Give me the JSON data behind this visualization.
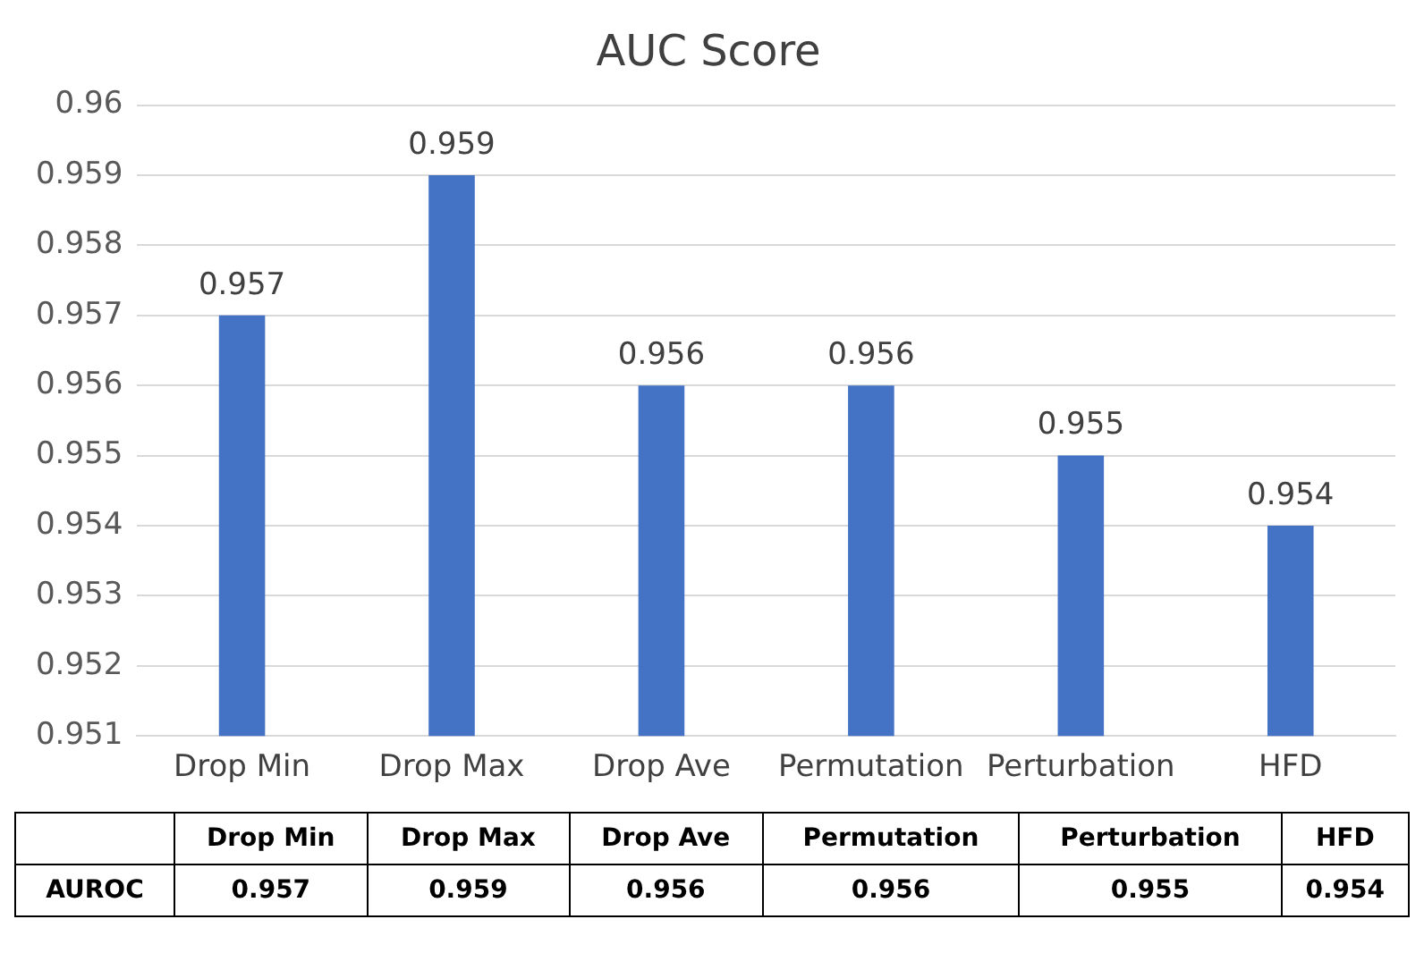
{
  "chart_data": {
    "type": "bar",
    "title": "AUC Score",
    "categories": [
      "Drop Min",
      "Drop Max",
      "Drop Ave",
      "Permutation",
      "Perturbation",
      "HFD"
    ],
    "series": [
      {
        "name": "AUROC",
        "color": "#4472c4",
        "values": [
          0.957,
          0.959,
          0.956,
          0.956,
          0.955,
          0.954
        ]
      }
    ],
    "ylim": [
      0.951,
      0.96
    ],
    "yticks": [
      0.951,
      0.952,
      0.953,
      0.954,
      0.955,
      0.956,
      0.957,
      0.958,
      0.959,
      0.96
    ],
    "grid": "y",
    "legend": false,
    "data_labels": true,
    "annotations": [
      "0.957",
      "0.959",
      "0.956",
      "0.956",
      "0.955",
      "0.954"
    ]
  }
}
